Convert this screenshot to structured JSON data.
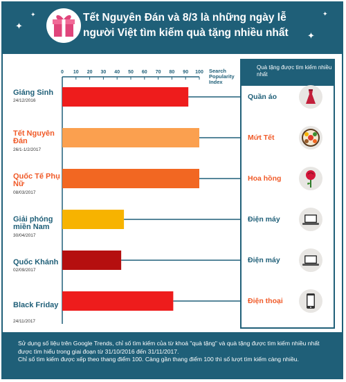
{
  "header": {
    "title": "Tết Nguyên Đán và 8/3 là những ngày lễ người Việt tìm kiếm quà tặng nhiều nhất"
  },
  "gift_panel": {
    "header": "Quà tặng được tìm kiếm nhiều nhất"
  },
  "chart_data": {
    "type": "bar",
    "orientation": "horizontal",
    "xlabel": "Search Popularity Index",
    "xlim": [
      0,
      100
    ],
    "xticks": [
      0,
      10,
      20,
      30,
      40,
      50,
      60,
      70,
      80,
      90,
      100
    ],
    "grid": false,
    "categories": [
      {
        "name": "Giáng Sinh",
        "date": "24/12/2016",
        "value": 92,
        "bar_color": "#ee1c1c",
        "label_color": "#1f5f78",
        "gift": "Quần áo",
        "gift_color": "#1f5f78",
        "icon": "dress-icon"
      },
      {
        "name": "Tết Nguyên Đán",
        "date": "26/1-1/2/2017",
        "value": 100,
        "bar_color": "#fba04f",
        "label_color": "#f05a28",
        "gift": "Mứt Tết",
        "gift_color": "#f05a28",
        "icon": "candy-tray-icon"
      },
      {
        "name": "Quốc Tế Phụ Nữ",
        "date": "08/03/2017",
        "value": 100,
        "bar_color": "#f26722",
        "label_color": "#f05a28",
        "gift": "Hoa hồng",
        "gift_color": "#f05a28",
        "icon": "rose-icon"
      },
      {
        "name": "Giải phóng miền Nam",
        "date": "30/04/2017",
        "value": 45,
        "bar_color": "#f7b300",
        "label_color": "#1f5f78",
        "gift": "Điện máy",
        "gift_color": "#1f5f78",
        "icon": "laptop-icon"
      },
      {
        "name": "Quốc Khánh",
        "date": "02/09/2017",
        "value": 43,
        "bar_color": "#b50f0f",
        "label_color": "#1f5f78",
        "gift": "Điện máy",
        "gift_color": "#1f5f78",
        "icon": "laptop-icon"
      },
      {
        "name": "Black Friday",
        "date": "24/11/2017",
        "value": 81,
        "bar_color": "#ee1c1c",
        "label_color": "#1f5f78",
        "gift": "Điện thoại",
        "gift_color": "#f05a28",
        "icon": "phone-icon"
      }
    ]
  },
  "footer": {
    "line1": "Sử dụng số liệu trên Google Trends, chỉ số tìm kiếm của từ khoá \"quà tặng\" và quà tặng được tìm kiếm nhiều nhất được tìm hiểu  trong giai đoạn từ 31/10/2016 đến 31/11/2017.",
    "line2": "Chỉ số tìm kiếm được xếp theo thang điểm 100. Càng gần thang điểm 100 thì số lượt tìm kiếm càng nhiều."
  },
  "colors": {
    "primary": "#1f5f78",
    "accent_orange": "#f05a28",
    "gift_circle": "#e8e6e3"
  }
}
